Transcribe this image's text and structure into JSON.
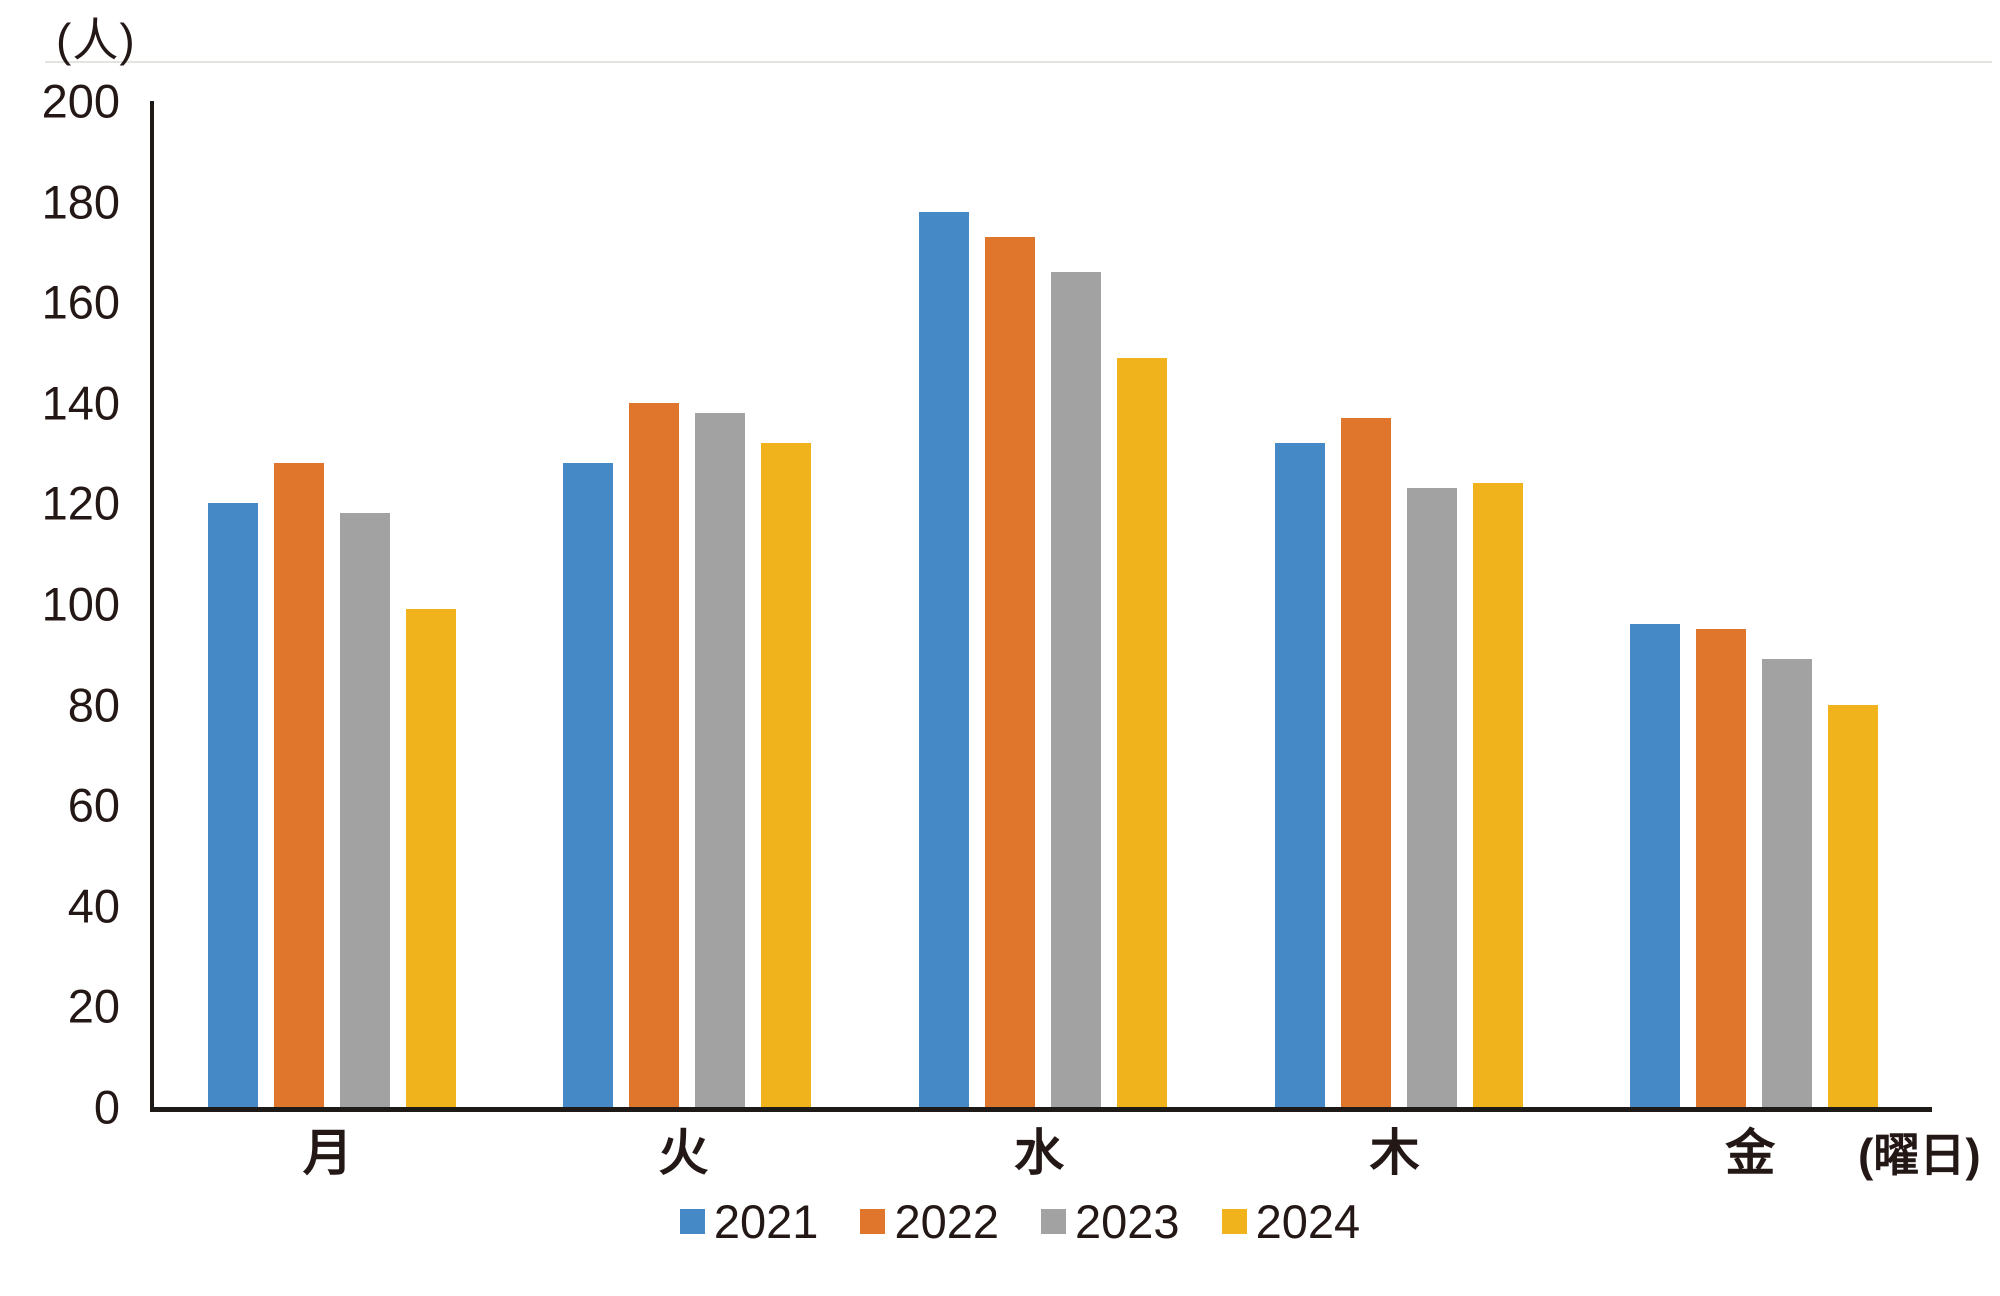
{
  "chart_data": {
    "type": "bar",
    "title": "",
    "y_unit_label": "(人)",
    "x_unit_label": "(曜日)",
    "categories": [
      "月",
      "火",
      "水",
      "木",
      "金"
    ],
    "series": [
      {
        "name": "2021",
        "color": "#458ac6",
        "values": [
          120,
          128,
          178,
          132,
          96
        ]
      },
      {
        "name": "2022",
        "color": "#e0752c",
        "values": [
          128,
          140,
          173,
          137,
          95
        ]
      },
      {
        "name": "2023",
        "color": "#a2a2a2",
        "values": [
          118,
          138,
          166,
          123,
          89
        ]
      },
      {
        "name": "2024",
        "color": "#f1b31c",
        "values": [
          99,
          132,
          149,
          124,
          80
        ]
      }
    ],
    "ylim": [
      0,
      200
    ],
    "ytick_step": 20,
    "yticks": [
      0,
      20,
      40,
      60,
      80,
      100,
      120,
      140,
      160,
      180,
      200
    ],
    "grid": false,
    "legend_position": "bottom",
    "axis_color": "#1d1a17",
    "text_color": "#231815"
  }
}
